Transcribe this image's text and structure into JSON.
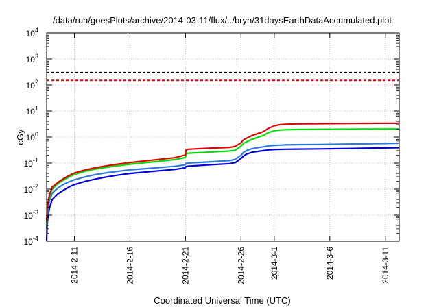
{
  "chart_data": {
    "type": "line",
    "title": "/data/run/goesPlots/archive/2014-03-11/flux/../bryn/31daysEarthDataAccumulated.plot",
    "xlabel": "Coordinated Universal Time (UTC)",
    "ylabel": "cGy",
    "y_scale": "log",
    "ylim": [
      0.0001,
      10000
    ],
    "xlim": [
      "2014-02-08T12:00",
      "2014-03-12T06:00"
    ],
    "grid": true,
    "legend": "none",
    "y_ticks": [
      {
        "value": 0.0001,
        "base": "10",
        "exp": "-4"
      },
      {
        "value": 0.001,
        "base": "10",
        "exp": "-3"
      },
      {
        "value": 0.01,
        "base": "10",
        "exp": "-2"
      },
      {
        "value": 0.1,
        "base": "10",
        "exp": "-1"
      },
      {
        "value": 1,
        "base": "10",
        "exp": "0"
      },
      {
        "value": 10,
        "base": "10",
        "exp": "1"
      },
      {
        "value": 100,
        "base": "10",
        "exp": "2"
      },
      {
        "value": 1000,
        "base": "10",
        "exp": "3"
      },
      {
        "value": 10000,
        "base": "10",
        "exp": "4"
      }
    ],
    "x_ticks": [
      {
        "value": "2014-02-11",
        "label": "2014-2-11"
      },
      {
        "value": "2014-02-16",
        "label": "2014-2-16"
      },
      {
        "value": "2014-02-21",
        "label": "2014-2-21"
      },
      {
        "value": "2014-02-26",
        "label": "2014-2-26"
      },
      {
        "value": "2014-03-01",
        "label": "2014-3-1"
      },
      {
        "value": "2014-03-06",
        "label": "2014-3-6"
      },
      {
        "value": "2014-03-11",
        "label": "2014-3-11"
      }
    ],
    "reference_lines": [
      {
        "value": 300,
        "color": "#000000",
        "dash": true
      },
      {
        "value": 150,
        "color": "#e00000",
        "dash": true
      }
    ],
    "series": [
      {
        "color": "#e00000",
        "x": [
          "2014-02-08T12:00",
          "2014-02-08T13:00",
          "2014-02-08T15:00",
          "2014-02-08T18:00",
          "2014-02-09T00:00",
          "2014-02-09T12:00",
          "2014-02-10T00:00",
          "2014-02-10T12:00",
          "2014-02-11T00:00",
          "2014-02-12T00:00",
          "2014-02-13T00:00",
          "2014-02-14T00:00",
          "2014-02-15T00:00",
          "2014-02-16T00:00",
          "2014-02-18T00:00",
          "2014-02-20T00:00",
          "2014-02-20T22:00",
          "2014-02-21T00:00",
          "2014-02-21T01:00",
          "2014-02-21T06:00",
          "2014-02-23T00:00",
          "2014-02-25T00:00",
          "2014-02-25T12:00",
          "2014-02-26T00:00",
          "2014-02-26T06:00",
          "2014-02-26T12:00",
          "2014-02-27T00:00",
          "2014-02-28T00:00",
          "2014-02-28T12:00",
          "2014-03-01T00:00",
          "2014-03-01T12:00",
          "2014-03-02T00:00",
          "2014-03-03T00:00",
          "2014-03-05T00:00",
          "2014-03-07T00:00",
          "2014-03-09T00:00",
          "2014-03-12T06:00"
        ],
        "values": [
          0.0006,
          0.0015,
          0.003,
          0.006,
          0.012,
          0.018,
          0.025,
          0.033,
          0.042,
          0.055,
          0.068,
          0.08,
          0.092,
          0.105,
          0.13,
          0.16,
          0.2,
          0.21,
          0.31,
          0.34,
          0.37,
          0.4,
          0.44,
          0.6,
          0.8,
          0.9,
          1.15,
          1.6,
          2.2,
          2.7,
          3.0,
          3.1,
          3.2,
          3.25,
          3.3,
          3.35,
          3.4
        ]
      },
      {
        "color": "#00dd00",
        "x": [
          "2014-02-08T12:00",
          "2014-02-08T13:00",
          "2014-02-08T15:00",
          "2014-02-08T18:00",
          "2014-02-09T00:00",
          "2014-02-09T12:00",
          "2014-02-10T00:00",
          "2014-02-10T12:00",
          "2014-02-11T00:00",
          "2014-02-12T00:00",
          "2014-02-13T00:00",
          "2014-02-14T00:00",
          "2014-02-15T00:00",
          "2014-02-16T00:00",
          "2014-02-18T00:00",
          "2014-02-20T00:00",
          "2014-02-20T22:00",
          "2014-02-21T00:00",
          "2014-02-21T01:00",
          "2014-02-21T06:00",
          "2014-02-23T00:00",
          "2014-02-25T00:00",
          "2014-02-25T12:00",
          "2014-02-26T00:00",
          "2014-02-26T06:00",
          "2014-02-26T12:00",
          "2014-02-27T00:00",
          "2014-02-28T00:00",
          "2014-02-28T12:00",
          "2014-03-01T00:00",
          "2014-03-01T12:00",
          "2014-03-02T00:00",
          "2014-03-03T00:00",
          "2014-03-05T00:00",
          "2014-03-07T00:00",
          "2014-03-09T00:00",
          "2014-03-12T06:00"
        ],
        "values": [
          0.0005,
          0.0012,
          0.0025,
          0.005,
          0.01,
          0.016,
          0.022,
          0.029,
          0.037,
          0.049,
          0.06,
          0.07,
          0.08,
          0.091,
          0.11,
          0.135,
          0.16,
          0.165,
          0.225,
          0.24,
          0.26,
          0.29,
          0.31,
          0.45,
          0.58,
          0.65,
          0.82,
          1.15,
          1.5,
          1.75,
          1.85,
          1.9,
          1.95,
          1.98,
          2.0,
          2.02,
          2.05
        ]
      },
      {
        "color": "#2a7ae0",
        "x": [
          "2014-02-08T12:00",
          "2014-02-08T13:00",
          "2014-02-08T15:00",
          "2014-02-08T18:00",
          "2014-02-09T00:00",
          "2014-02-09T12:00",
          "2014-02-10T00:00",
          "2014-02-10T12:00",
          "2014-02-11T00:00",
          "2014-02-12T00:00",
          "2014-02-13T00:00",
          "2014-02-14T00:00",
          "2014-02-15T00:00",
          "2014-02-16T00:00",
          "2014-02-18T00:00",
          "2014-02-20T00:00",
          "2014-02-20T22:00",
          "2014-02-21T00:00",
          "2014-02-21T01:00",
          "2014-02-21T06:00",
          "2014-02-23T00:00",
          "2014-02-25T00:00",
          "2014-02-25T12:00",
          "2014-02-26T00:00",
          "2014-02-26T06:00",
          "2014-02-26T12:00",
          "2014-02-27T00:00",
          "2014-02-28T00:00",
          "2014-02-28T12:00",
          "2014-03-01T00:00",
          "2014-03-01T12:00",
          "2014-03-02T00:00",
          "2014-03-03T00:00",
          "2014-03-05T00:00",
          "2014-03-07T00:00",
          "2014-03-09T00:00",
          "2014-03-12T06:00"
        ],
        "values": [
          0.0003,
          0.0008,
          0.0018,
          0.0035,
          0.007,
          0.011,
          0.015,
          0.019,
          0.023,
          0.03,
          0.037,
          0.043,
          0.049,
          0.055,
          0.064,
          0.075,
          0.085,
          0.088,
          0.097,
          0.1,
          0.11,
          0.125,
          0.14,
          0.2,
          0.26,
          0.3,
          0.36,
          0.42,
          0.46,
          0.48,
          0.49,
          0.5,
          0.51,
          0.52,
          0.535,
          0.55,
          0.58
        ]
      },
      {
        "color": "#0000dd",
        "x": [
          "2014-02-08T12:00",
          "2014-02-08T13:00",
          "2014-02-08T15:00",
          "2014-02-08T18:00",
          "2014-02-09T00:00",
          "2014-02-09T12:00",
          "2014-02-10T00:00",
          "2014-02-10T12:00",
          "2014-02-11T00:00",
          "2014-02-12T00:00",
          "2014-02-13T00:00",
          "2014-02-14T00:00",
          "2014-02-15T00:00",
          "2014-02-16T00:00",
          "2014-02-18T00:00",
          "2014-02-20T00:00",
          "2014-02-20T22:00",
          "2014-02-21T00:00",
          "2014-02-21T01:00",
          "2014-02-21T06:00",
          "2014-02-23T00:00",
          "2014-02-25T00:00",
          "2014-02-25T12:00",
          "2014-02-26T00:00",
          "2014-02-26T06:00",
          "2014-02-26T12:00",
          "2014-02-27T00:00",
          "2014-02-28T00:00",
          "2014-02-28T12:00",
          "2014-03-01T00:00",
          "2014-03-01T12:00",
          "2014-03-02T00:00",
          "2014-03-03T00:00",
          "2014-03-05T00:00",
          "2014-03-07T00:00",
          "2014-03-09T00:00",
          "2014-03-12T06:00"
        ],
        "values": [
          0.0001,
          0.0004,
          0.0009,
          0.0018,
          0.004,
          0.0065,
          0.009,
          0.012,
          0.015,
          0.02,
          0.025,
          0.03,
          0.035,
          0.04,
          0.048,
          0.057,
          0.065,
          0.068,
          0.074,
          0.076,
          0.085,
          0.095,
          0.105,
          0.15,
          0.19,
          0.22,
          0.26,
          0.3,
          0.32,
          0.33,
          0.335,
          0.34,
          0.345,
          0.35,
          0.36,
          0.37,
          0.39
        ]
      }
    ]
  }
}
